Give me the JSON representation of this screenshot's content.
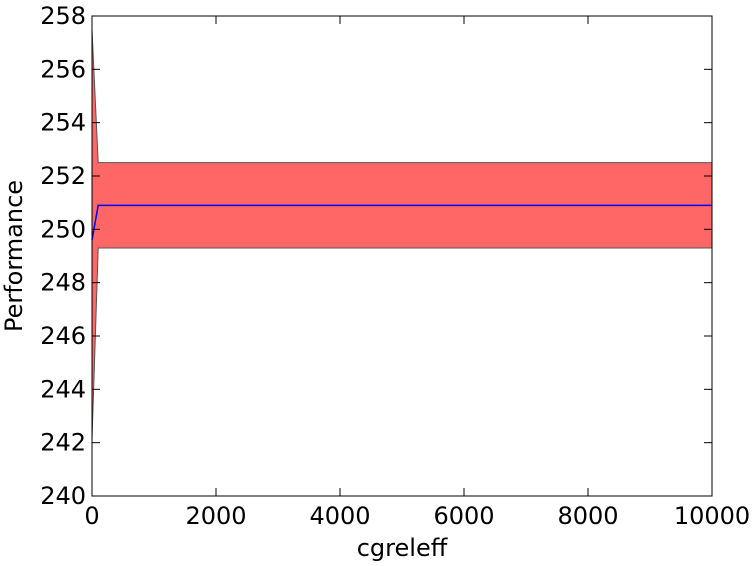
{
  "chart_data": {
    "type": "line",
    "xlabel": "cgreleff",
    "ylabel": "Performance",
    "x": [
      0,
      100,
      10000
    ],
    "values": [
      249.6,
      250.9,
      250.9
    ],
    "upper": [
      257.5,
      252.5,
      252.5
    ],
    "lower": [
      242.1,
      249.3,
      249.3
    ],
    "color": "#0000ff",
    "band_color": "#ff6666",
    "xlim": [
      0,
      10000
    ],
    "xticks": [
      0,
      2000,
      4000,
      6000,
      8000,
      10000
    ],
    "ylim": [
      240,
      258
    ],
    "yticks": [
      240,
      242,
      244,
      246,
      248,
      250,
      252,
      254,
      256,
      258
    ]
  }
}
